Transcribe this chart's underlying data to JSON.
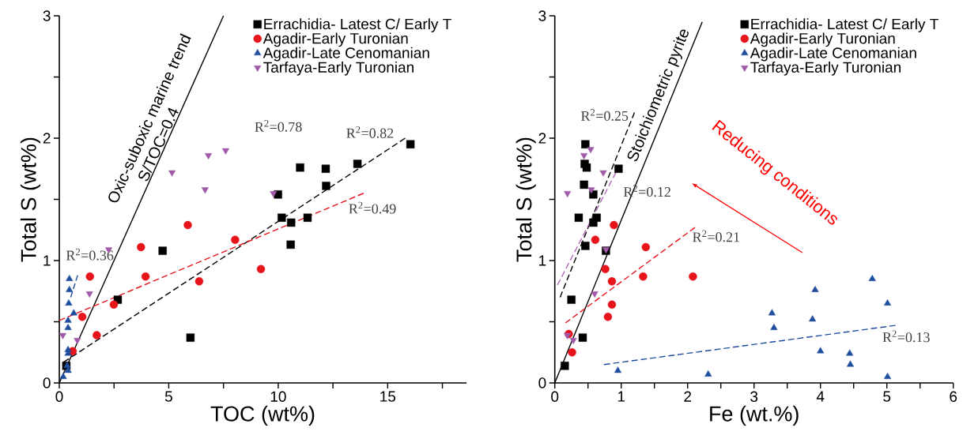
{
  "chart_data": [
    {
      "type": "scatter",
      "xlabel": "TOC (wt%)",
      "ylabel": "Total S (wt%)",
      "xlim": [
        0,
        18.6
      ],
      "ylim": [
        0,
        3
      ],
      "legend": "top right",
      "xticks": [
        0,
        {
          "value": 2.5,
          "label": null
        },
        5,
        {
          "value": 7.5,
          "label": null
        },
        10,
        {
          "value": 12.5,
          "label": null
        },
        15,
        {
          "value": 17.5,
          "label": null
        }
      ],
      "yticks": [
        0,
        {
          "value": 0.5,
          "label": null
        },
        1,
        {
          "value": 1.5,
          "label": null
        },
        2,
        {
          "value": 2.5,
          "label": null
        },
        3
      ],
      "series": [
        {
          "name": "Errachidia- Latest C/ Early T",
          "color": "#000000",
          "marker": "square",
          "x": [
            0.32,
            2.67,
            4.72,
            5.99,
            9.99,
            10.16,
            10.59,
            10.57,
            11.34,
            11.0,
            12.19,
            12.17,
            13.62,
            16.04
          ],
          "values": [
            0.14,
            0.68,
            1.08,
            0.37,
            1.54,
            1.35,
            1.31,
            1.13,
            1.35,
            1.76,
            1.61,
            1.75,
            1.79,
            1.95
          ]
        },
        {
          "name": "Agadir-Early Turonian",
          "color": "#e8141b",
          "marker": "circle",
          "x": [
            0.61,
            1.05,
            1.4,
            1.71,
            2.49,
            3.73,
            3.94,
            5.87,
            6.39,
            8.03,
            9.21
          ],
          "values": [
            0.26,
            0.54,
            0.87,
            0.39,
            0.64,
            1.11,
            0.87,
            1.29,
            0.83,
            1.17,
            0.93
          ]
        },
        {
          "name": "Agadir-Late Cenomanian",
          "color": "#1f4e9e",
          "marker": "triangle",
          "x": [
            0.46,
            0.46,
            0.43,
            0.66,
            0.4,
            0.4,
            0.4,
            0.4,
            0.36,
            0.4,
            0.18
          ],
          "values": [
            0.85,
            0.76,
            0.65,
            0.57,
            0.51,
            0.45,
            0.27,
            0.24,
            0.14,
            0.1,
            0.05
          ]
        },
        {
          "name": "Tarfaya-Early Turonian",
          "color": "#a05aa8",
          "marker": "triangle-down",
          "x": [
            0.16,
            0.82,
            1.38,
            2.26,
            5.15,
            6.66,
            6.81,
            7.6,
            9.78
          ],
          "values": [
            0.39,
            0.35,
            0.73,
            1.09,
            1.72,
            1.58,
            1.86,
            1.9,
            1.55
          ]
        },
        {
          "type": "line",
          "color": "#000000",
          "line_style": "solid",
          "marker": "none",
          "x": [
            0,
            7.5
          ],
          "values": [
            0,
            3
          ]
        },
        {
          "type": "line",
          "color": "#000000",
          "line_style": "dashed",
          "marker": "none",
          "x": [
            0.2,
            15.8
          ],
          "values": [
            0.17,
            2.0
          ]
        },
        {
          "type": "line",
          "color": "#e8141b",
          "line_style": "dashed",
          "marker": "none",
          "x": [
            0,
            13.9
          ],
          "values": [
            0.51,
            1.55
          ]
        },
        {
          "type": "line",
          "color": "#1f4e9e",
          "line_style": "dashed",
          "marker": "none",
          "x": [
            0.52,
            0.84
          ],
          "values": [
            0.7,
            0.88
          ]
        }
      ],
      "annotations": [
        "Oxic-suboxic marine trend",
        "S/TOC=0.4",
        "R$^{2}$=0.36",
        "R$^{2}$=0.78",
        "R$^{2}$=0.82",
        "R$^{2}$=0.49"
      ]
    },
    {
      "type": "scatter",
      "xlabel": "Fe (wt.%)",
      "ylabel": "Total S (wt%)",
      "xlim": [
        0,
        6
      ],
      "ylim": [
        0,
        3
      ],
      "legend": "top right",
      "xticks": [
        0,
        {
          "value": 0.5,
          "label": null
        },
        1,
        {
          "value": 1.5,
          "label": null
        },
        2,
        {
          "value": 2.5,
          "label": null
        },
        3,
        {
          "value": 3.5,
          "label": null
        },
        4,
        {
          "value": 4.5,
          "label": null
        },
        5,
        {
          "value": 5.5,
          "label": null
        },
        6
      ],
      "yticks": [
        0,
        {
          "value": 0.5,
          "label": null
        },
        1,
        {
          "value": 1.5,
          "label": null
        },
        2,
        {
          "value": 2.5,
          "label": null
        },
        3
      ],
      "series": [
        {
          "name": "Errachidia- Latest C/ Early T",
          "color": "#000000",
          "marker": "square",
          "x": [
            0.46,
            0.45,
            0.48,
            0.96,
            0.44,
            0.58,
            0.36,
            0.63,
            0.58,
            0.46,
            0.77,
            0.25,
            0.42,
            0.15
          ],
          "values": [
            1.95,
            1.79,
            1.76,
            1.75,
            1.62,
            1.54,
            1.35,
            1.35,
            1.31,
            1.12,
            1.08,
            0.68,
            0.37,
            0.14
          ]
        },
        {
          "name": "Agadir-Early Turonian",
          "color": "#e8141b",
          "marker": "circle",
          "x": [
            0.89,
            0.61,
            1.37,
            0.76,
            0.86,
            1.33,
            2.08,
            0.86,
            0.8,
            0.21,
            0.26
          ],
          "values": [
            1.29,
            1.17,
            1.11,
            0.93,
            0.83,
            0.87,
            0.87,
            0.64,
            0.54,
            0.4,
            0.25
          ]
        },
        {
          "name": "Agadir-Late Cenomanian",
          "color": "#1f4e9e",
          "marker": "triangle",
          "x": [
            0.95,
            2.31,
            3.27,
            3.3,
            3.92,
            3.88,
            4.0,
            4.44,
            4.45,
            4.78,
            5.01,
            5.01
          ],
          "values": [
            0.1,
            0.07,
            0.57,
            0.45,
            0.76,
            0.52,
            0.26,
            0.24,
            0.15,
            0.85,
            0.65,
            0.05
          ]
        },
        {
          "name": "Tarfaya-Early Turonian",
          "color": "#a05aa8",
          "marker": "triangle-down",
          "x": [
            0.54,
            0.44,
            0.73,
            0.55,
            0.19,
            0.77,
            0.6,
            0.19,
            0.28
          ],
          "values": [
            1.91,
            1.86,
            1.72,
            1.58,
            1.55,
            1.09,
            0.73,
            0.39,
            0.35
          ]
        },
        {
          "type": "line",
          "color": "#000000",
          "line_style": "solid",
          "marker": "none",
          "x": [
            0,
            2.22
          ],
          "values": [
            0,
            2.95
          ]
        },
        {
          "type": "line",
          "color": "#000000",
          "line_style": "dashed",
          "marker": "none",
          "x": [
            0.08,
            1.2
          ],
          "values": [
            0.7,
            2.21
          ]
        },
        {
          "type": "line",
          "color": "#b06ab8",
          "line_style": "dashed",
          "marker": "none",
          "x": [
            0.04,
            0.92
          ],
          "values": [
            0.8,
            1.72
          ]
        },
        {
          "type": "line",
          "color": "#e8141b",
          "line_style": "dashed",
          "marker": "none",
          "x": [
            0.16,
            2.11
          ],
          "values": [
            0.49,
            1.27
          ]
        },
        {
          "type": "line",
          "color": "#1f4e9e",
          "line_style": "dashed",
          "marker": "none",
          "x": [
            0.74,
            5.13
          ],
          "values": [
            0.15,
            0.47
          ]
        }
      ],
      "annotations": [
        "Stoichiometric pyrite",
        "Reducing conditions",
        "R$^{2}$=0.25",
        "R$^{2}$=0.12",
        "R$^{2}$=0.21",
        "R$^{2}$=0.13"
      ]
    }
  ]
}
